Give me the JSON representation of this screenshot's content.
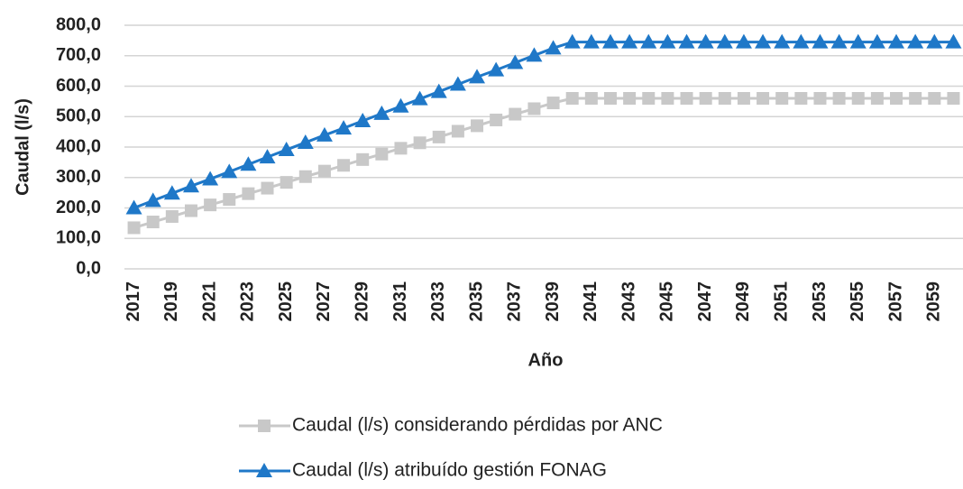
{
  "chart_data": {
    "type": "line",
    "x_label": "Año",
    "y_label": "Caudal (l/s)",
    "categories": [
      "2017",
      null,
      "2019",
      null,
      "2021",
      null,
      "2023",
      null,
      "2025",
      null,
      "2027",
      null,
      "2029",
      null,
      "2031",
      null,
      "2033",
      null,
      "2035",
      null,
      "2037",
      null,
      "2039",
      null,
      "2041",
      null,
      "2043",
      null,
      "2045",
      null,
      "2047",
      null,
      "2049",
      null,
      "2051",
      null,
      "2053",
      null,
      "2055",
      null,
      "2057",
      null,
      "2059",
      null
    ],
    "series": [
      {
        "name": "Caudal (l/s) considerando pérdidas por ANC",
        "color": "#c8c8c8",
        "marker": "square",
        "values": [
          135,
          154,
          172,
          191,
          210,
          228,
          247,
          265,
          284,
          303,
          321,
          340,
          359,
          377,
          396,
          414,
          433,
          452,
          470,
          489,
          508,
          526,
          545,
          560,
          560,
          560,
          560,
          560,
          560,
          560,
          560,
          560,
          560,
          560,
          560,
          560,
          560,
          560,
          560,
          560,
          560,
          560,
          560,
          560
        ]
      },
      {
        "name": "Caudal (l/s) atribuído gestión FONAG",
        "color": "#1f78c8",
        "marker": "triangle",
        "values": [
          200,
          224,
          248,
          272,
          295,
          319,
          343,
          367,
          391,
          415,
          439,
          462,
          486,
          510,
          534,
          558,
          582,
          606,
          630,
          653,
          677,
          701,
          725,
          745,
          745,
          745,
          745,
          745,
          745,
          745,
          745,
          745,
          745,
          745,
          745,
          745,
          745,
          745,
          745,
          745,
          745,
          745,
          745,
          745
        ]
      }
    ],
    "ylim": [
      0,
      800
    ],
    "yticks": [
      {
        "value": 0,
        "label": "0,0"
      },
      {
        "value": 100,
        "label": "100,0"
      },
      {
        "value": 200,
        "label": "200,0"
      },
      {
        "value": 300,
        "label": "300,0"
      },
      {
        "value": 400,
        "label": "400,0"
      },
      {
        "value": 500,
        "label": "500,0"
      },
      {
        "value": 600,
        "label": "600,0"
      },
      {
        "value": 700,
        "label": "700,0"
      },
      {
        "value": 800,
        "label": "800,0"
      }
    ],
    "grid": true
  }
}
